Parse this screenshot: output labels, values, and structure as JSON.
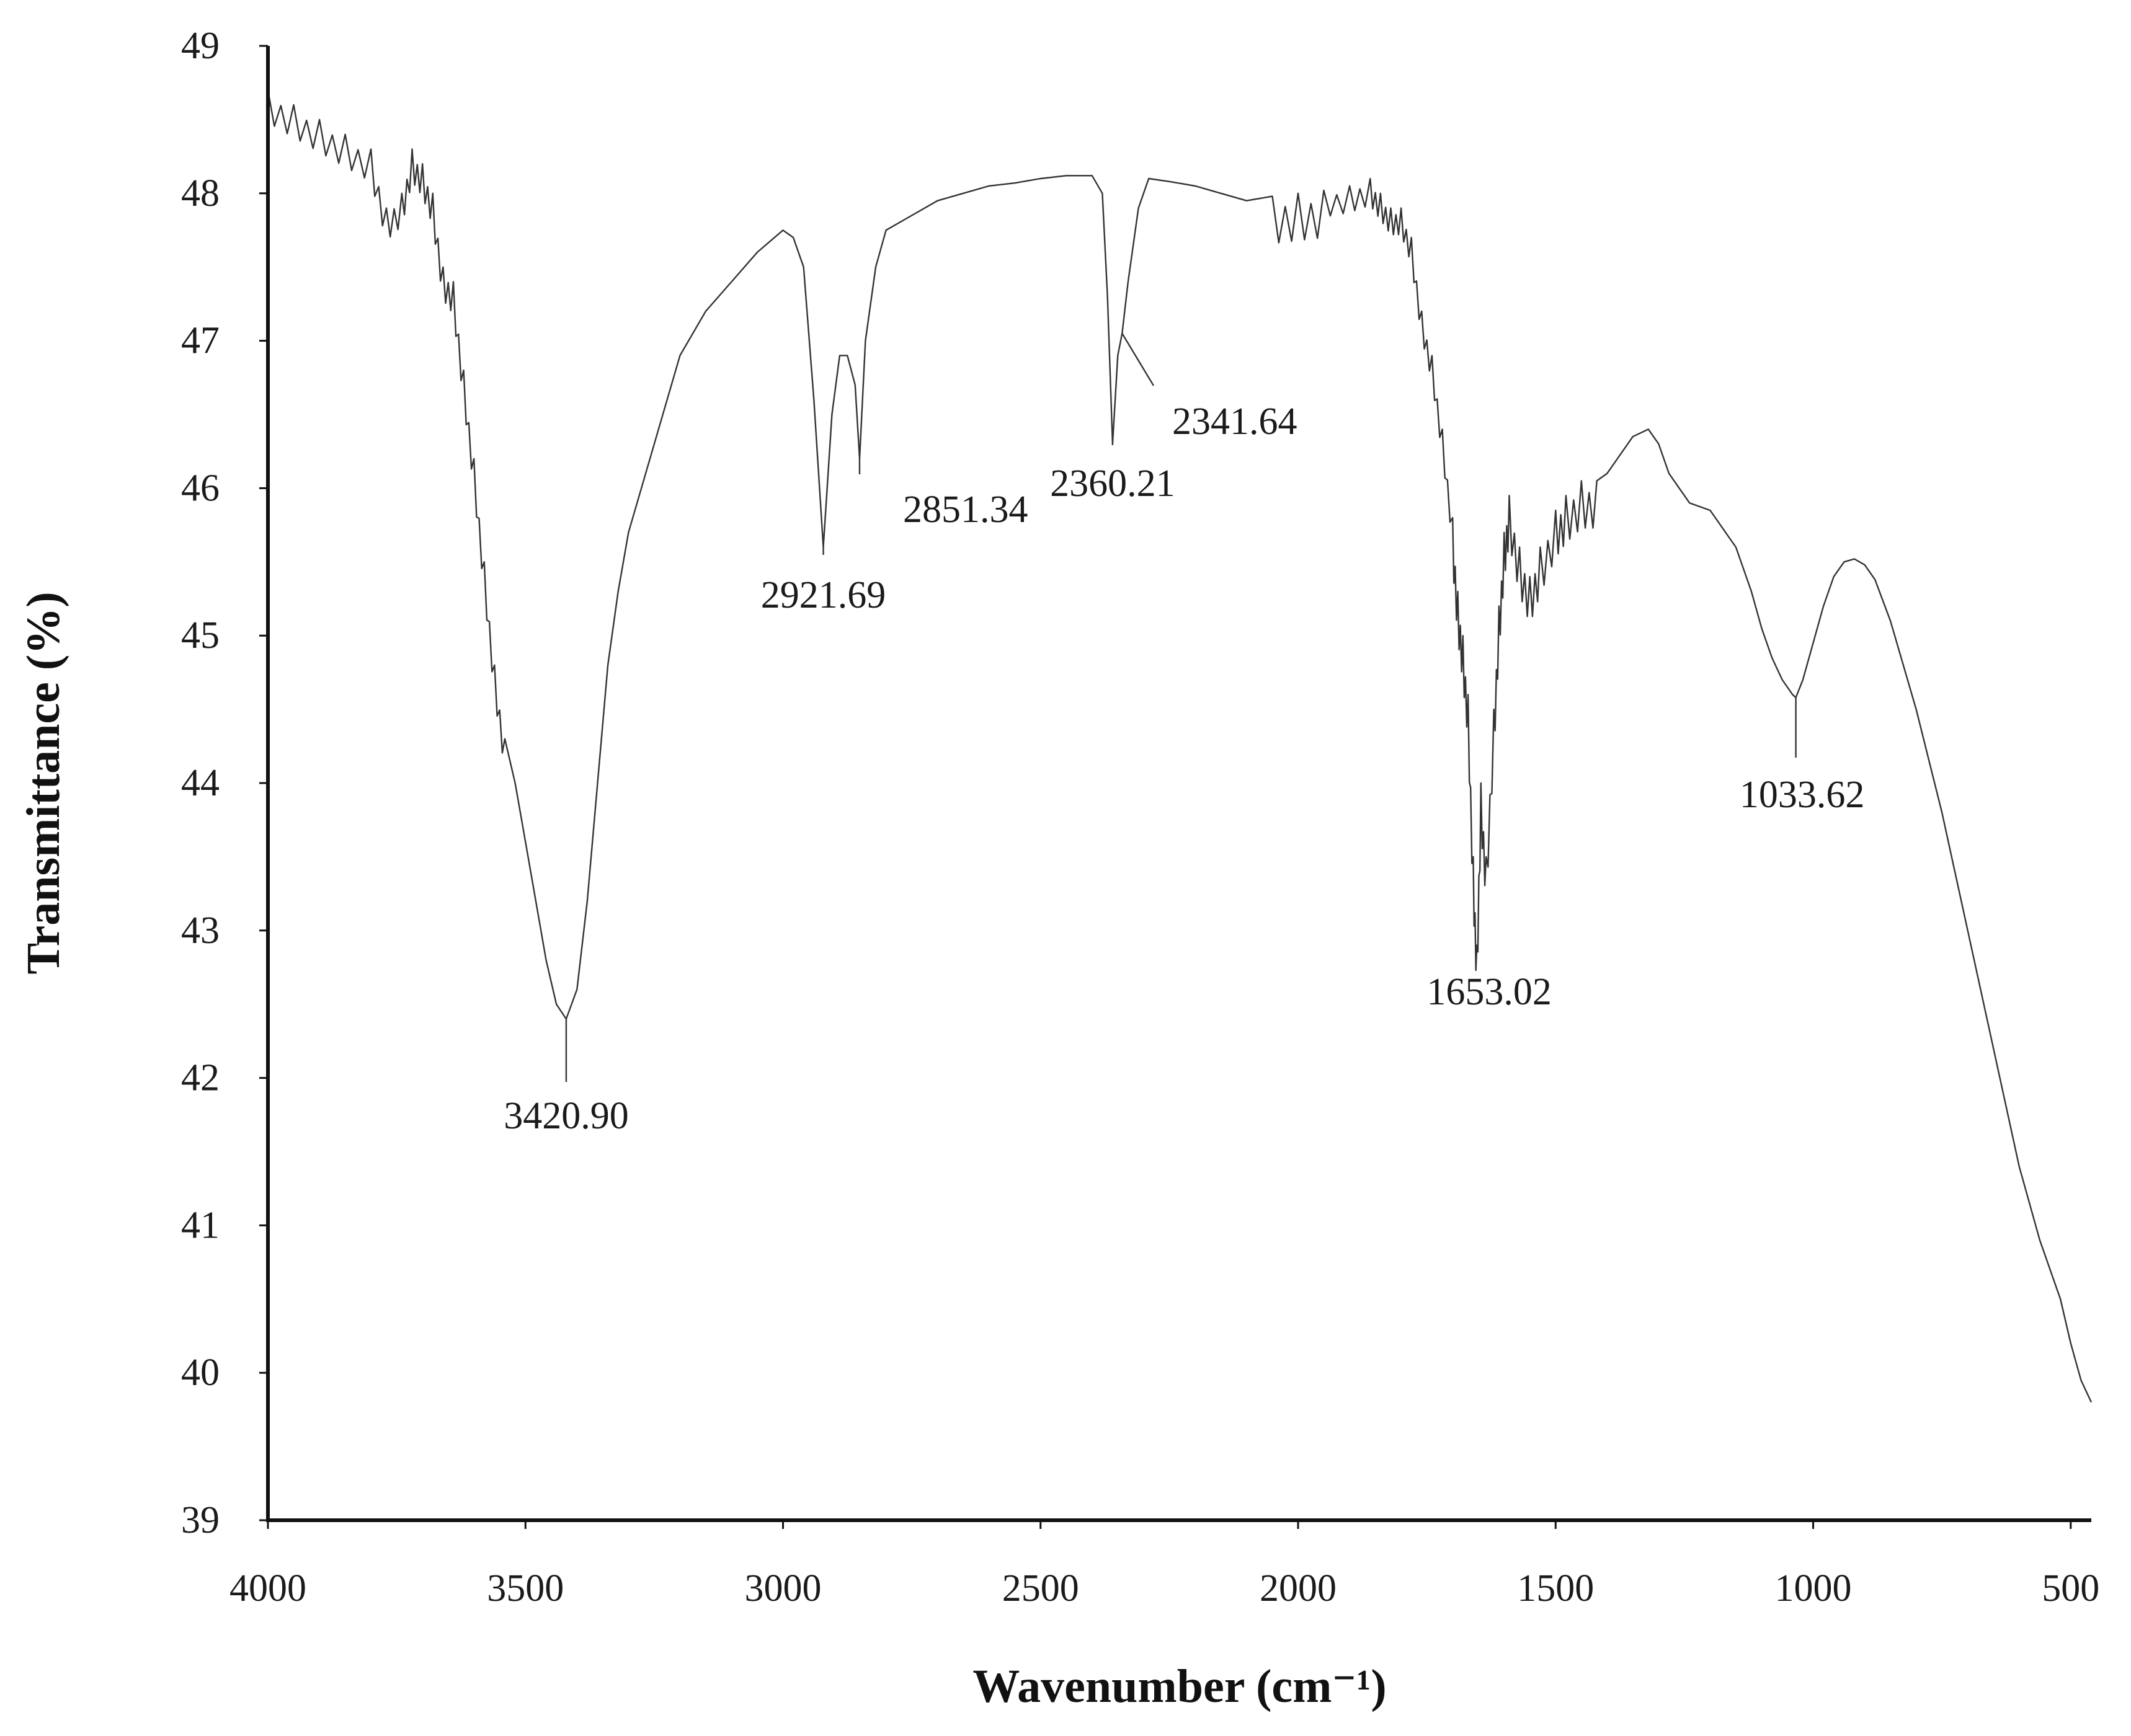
{
  "chart_data": {
    "type": "line",
    "xlabel": "Wavenumber (cm⁻¹)",
    "ylabel": "Transmittance (%)",
    "xlim": [
      4000,
      460
    ],
    "ylim": [
      39,
      49
    ],
    "x_reversed": true,
    "grid": false,
    "x_ticks": [
      4000,
      3500,
      3000,
      2500,
      2000,
      1500,
      1000,
      500
    ],
    "x_tick_labels": [
      "4000",
      "3500",
      "3000",
      "2500",
      "2000",
      "1500",
      "1000",
      "500"
    ],
    "y_ticks": [
      39,
      40,
      41,
      42,
      43,
      44,
      45,
      46,
      47,
      48,
      49
    ],
    "y_tick_labels": [
      "39",
      "40",
      "41",
      "42",
      "43",
      "44",
      "45",
      "46",
      "47",
      "48",
      "49"
    ],
    "series": [
      {
        "x": [
          4000,
          3950,
          3900,
          3850,
          3800,
          3770,
          3740,
          3720,
          3700,
          3680,
          3660,
          3640,
          3620,
          3600,
          3580,
          3560,
          3540,
          3520,
          3500,
          3480,
          3460,
          3440,
          3420.9,
          3400,
          3380,
          3360,
          3340,
          3320,
          3300,
          3250,
          3200,
          3150,
          3100,
          3050,
          3000,
          2980,
          2960,
          2940,
          2921.69,
          2905,
          2890,
          2875,
          2860,
          2851.34,
          2840,
          2820,
          2800,
          2750,
          2700,
          2650,
          2600,
          2550,
          2500,
          2450,
          2400,
          2380,
          2370,
          2360.21,
          2350,
          2341.64,
          2330,
          2310,
          2290,
          2250,
          2200,
          2150,
          2100,
          2050,
          2000,
          1950,
          1900,
          1860,
          1840,
          1820,
          1800,
          1780,
          1760,
          1740,
          1720,
          1700,
          1690,
          1680,
          1670,
          1660,
          1653.02,
          1645,
          1635,
          1620,
          1610,
          1600,
          1590,
          1570,
          1550,
          1530,
          1500,
          1480,
          1450,
          1420,
          1400,
          1380,
          1350,
          1320,
          1300,
          1280,
          1260,
          1240,
          1200,
          1150,
          1120,
          1100,
          1080,
          1060,
          1040,
          1033.62,
          1020,
          1000,
          980,
          960,
          940,
          920,
          900,
          880,
          850,
          800,
          750,
          700,
          650,
          600,
          560,
          520,
          500,
          480,
          460
        ],
        "y": [
          48.7,
          48.6,
          48.5,
          48.4,
          48.3,
          47.9,
          48.0,
          48.3,
          48.2,
          48.0,
          47.5,
          47.4,
          46.8,
          46.2,
          45.5,
          44.8,
          44.3,
          44.0,
          43.6,
          43.2,
          42.8,
          42.5,
          42.4,
          42.6,
          43.2,
          44.0,
          44.8,
          45.3,
          45.7,
          46.3,
          46.9,
          47.2,
          47.4,
          47.6,
          47.75,
          47.7,
          47.5,
          46.6,
          45.6,
          46.5,
          46.9,
          46.9,
          46.7,
          46.2,
          47.0,
          47.5,
          47.75,
          47.85,
          47.95,
          48.0,
          48.05,
          48.07,
          48.1,
          48.12,
          48.12,
          48.0,
          47.3,
          46.3,
          46.9,
          47.05,
          47.4,
          47.9,
          48.1,
          48.08,
          48.05,
          48.0,
          47.95,
          47.98,
          48.0,
          48.02,
          48.05,
          48.1,
          48.0,
          47.9,
          47.9,
          47.7,
          47.2,
          46.9,
          46.4,
          45.8,
          45.3,
          45.0,
          44.6,
          43.5,
          42.9,
          44.0,
          43.5,
          44.5,
          45.2,
          45.7,
          45.95,
          45.6,
          45.4,
          45.6,
          45.85,
          45.95,
          46.05,
          46.05,
          46.1,
          46.2,
          46.35,
          46.4,
          46.3,
          46.1,
          46.0,
          45.9,
          45.85,
          45.6,
          45.3,
          45.05,
          44.85,
          44.7,
          44.6,
          44.58,
          44.7,
          44.95,
          45.2,
          45.4,
          45.5,
          45.52,
          45.48,
          45.38,
          45.1,
          44.5,
          43.8,
          43.0,
          42.2,
          41.4,
          40.9,
          40.5,
          40.2,
          39.95,
          39.8
        ]
      }
    ],
    "annotations": [
      {
        "label": "3420.90",
        "x": 3420.9,
        "y": 42.4
      },
      {
        "label": "2921.69",
        "x": 2921.69,
        "y": 45.6
      },
      {
        "label": "2851.34",
        "x": 2851.34,
        "y": 46.2
      },
      {
        "label": "2360.21",
        "x": 2360.21,
        "y": 46.3
      },
      {
        "label": "2341.64",
        "x": 2341.64,
        "y": 47.05
      },
      {
        "label": "1653.02",
        "x": 1653.02,
        "y": 42.9
      },
      {
        "label": "1033.62",
        "x": 1033.62,
        "y": 44.58
      }
    ]
  }
}
